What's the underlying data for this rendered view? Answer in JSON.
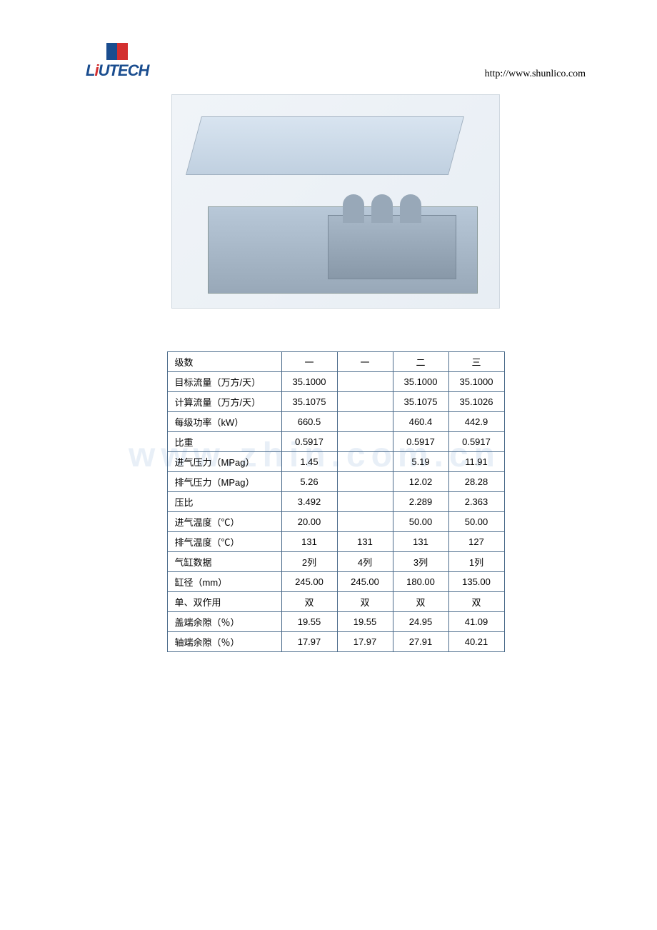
{
  "header": {
    "logo_text": "LiUTECH",
    "url": "http://www.shunlico.com"
  },
  "watermark": "www.zhin.com.cn",
  "table": {
    "rows": [
      {
        "label": "级数",
        "c1": "一",
        "c2": "一",
        "c3": "二",
        "c4": "三"
      },
      {
        "label": "目标流量（万方/天）",
        "c1": "35.1000",
        "c2": "",
        "c3": "35.1000",
        "c4": "35.1000"
      },
      {
        "label": "计算流量（万方/天）",
        "c1": "35.1075",
        "c2": "",
        "c3": "35.1075",
        "c4": "35.1026"
      },
      {
        "label": "每级功率（kW）",
        "c1": "660.5",
        "c2": "",
        "c3": "460.4",
        "c4": "442.9"
      },
      {
        "label": "比重",
        "c1": "0.5917",
        "c2": "",
        "c3": "0.5917",
        "c4": "0.5917"
      },
      {
        "label": "进气压力（MPag）",
        "c1": "1.45",
        "c2": "",
        "c3": "5.19",
        "c4": "11.91"
      },
      {
        "label": "排气压力（MPag）",
        "c1": "5.26",
        "c2": "",
        "c3": "12.02",
        "c4": "28.28"
      },
      {
        "label": "压比",
        "c1": "3.492",
        "c2": "",
        "c3": "2.289",
        "c4": "2.363"
      },
      {
        "label": "进气温度（℃）",
        "c1": "20.00",
        "c2": "",
        "c3": "50.00",
        "c4": "50.00"
      },
      {
        "label": "排气温度（℃）",
        "c1": "131",
        "c2": "131",
        "c3": "131",
        "c4": "127"
      },
      {
        "label": "气缸数据",
        "c1": "2列",
        "c2": "4列",
        "c3": "3列",
        "c4": "1列"
      },
      {
        "label": "缸径（mm）",
        "c1": "245.00",
        "c2": "245.00",
        "c3": "180.00",
        "c4": "135.00"
      },
      {
        "label": "单、双作用",
        "c1": "双",
        "c2": "双",
        "c3": "双",
        "c4": "双"
      },
      {
        "label": "盖端余隙（％）",
        "c1": "19.55",
        "c2": "19.55",
        "c3": "24.95",
        "c4": "41.09"
      },
      {
        "label": "轴端余隙（％）",
        "c1": "17.97",
        "c2": "17.97",
        "c3": "27.91",
        "c4": "40.21"
      }
    ]
  },
  "colors": {
    "border": "#4a6a8a",
    "logo_blue": "#1a4d8f",
    "logo_red": "#d32f2f",
    "text": "#000000",
    "background": "#ffffff"
  }
}
